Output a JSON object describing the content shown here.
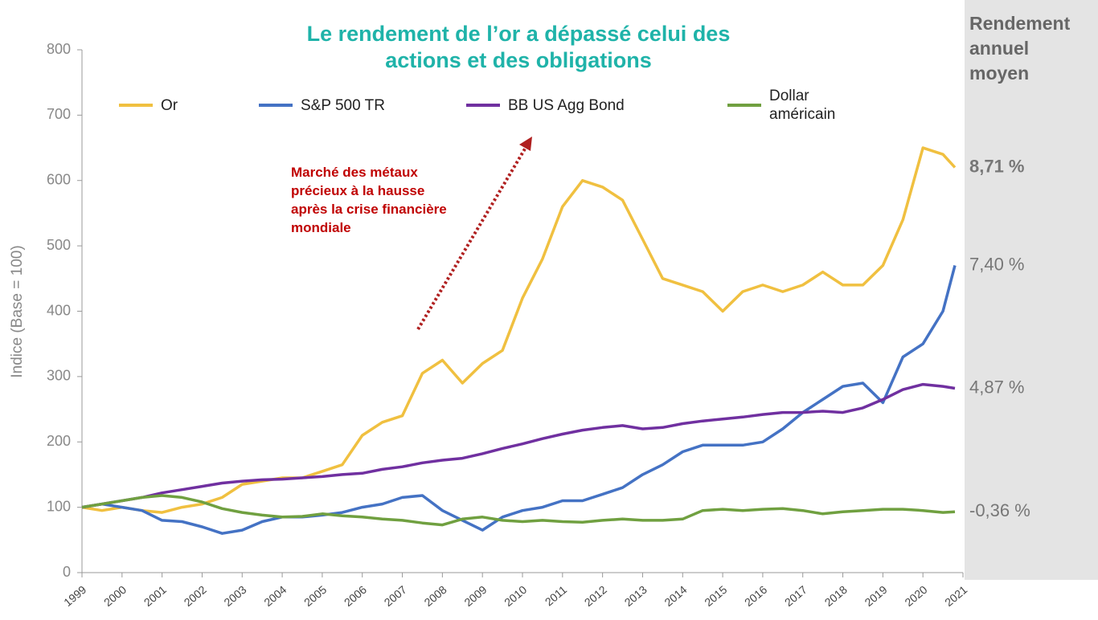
{
  "chart_data": {
    "type": "line",
    "title": "Le rendement de l’or a dépassé celui des actions et des obligations",
    "y_label": "Indice (Base = 100)",
    "panel_title": "Rendement annuel moyen",
    "annotation": "Marché des métaux précieux à la hausse après la crise financière mondiale",
    "x": [
      1999,
      1999.5,
      2000,
      2000.5,
      2001,
      2001.5,
      2002,
      2002.5,
      2003,
      2003.5,
      2004,
      2004.5,
      2005,
      2005.5,
      2006,
      2006.5,
      2007,
      2007.5,
      2008,
      2008.5,
      2009,
      2009.5,
      2010,
      2010.5,
      2011,
      2011.5,
      2012,
      2012.5,
      2013,
      2013.5,
      2014,
      2014.5,
      2015,
      2015.5,
      2016,
      2016.5,
      2017,
      2017.5,
      2018,
      2018.5,
      2019,
      2019.5,
      2020,
      2020.5,
      2020.8
    ],
    "series": [
      {
        "name": "Or",
        "color": "#f0c040",
        "annual_return": "8,71 %",
        "values": [
          100,
          95,
          100,
          95,
          92,
          100,
          105,
          115,
          135,
          140,
          145,
          145,
          155,
          165,
          210,
          230,
          240,
          305,
          325,
          290,
          320,
          340,
          420,
          480,
          560,
          600,
          590,
          570,
          510,
          450,
          440,
          430,
          400,
          430,
          440,
          430,
          440,
          460,
          440,
          440,
          470,
          540,
          650,
          640,
          620
        ]
      },
      {
        "name": "S&P 500 TR",
        "color": "#4472c4",
        "annual_return": "7,40 %",
        "values": [
          100,
          105,
          100,
          95,
          80,
          78,
          70,
          60,
          65,
          78,
          85,
          85,
          88,
          92,
          100,
          105,
          115,
          118,
          95,
          80,
          65,
          85,
          95,
          100,
          110,
          110,
          120,
          130,
          150,
          165,
          185,
          195,
          195,
          195,
          200,
          220,
          245,
          265,
          285,
          290,
          260,
          330,
          350,
          400,
          470
        ]
      },
      {
        "name": "BB US Agg Bond",
        "color": "#7030a0",
        "annual_return": "4,87 %",
        "values": [
          100,
          105,
          110,
          115,
          122,
          127,
          132,
          137,
          140,
          142,
          143,
          145,
          147,
          150,
          152,
          158,
          162,
          168,
          172,
          175,
          182,
          190,
          197,
          205,
          212,
          218,
          222,
          225,
          220,
          222,
          228,
          232,
          235,
          238,
          242,
          245,
          245,
          247,
          245,
          252,
          265,
          280,
          288,
          285,
          282
        ]
      },
      {
        "name": "Dollar américain",
        "color": "#70a040",
        "annual_return": "-0,36 %",
        "values": [
          100,
          105,
          110,
          115,
          118,
          115,
          108,
          98,
          92,
          88,
          85,
          86,
          90,
          87,
          85,
          82,
          80,
          76,
          73,
          82,
          85,
          80,
          78,
          80,
          78,
          77,
          80,
          82,
          80,
          80,
          82,
          95,
          97,
          95,
          97,
          98,
          95,
          90,
          93,
          95,
          97,
          97,
          95,
          92,
          93
        ]
      }
    ],
    "xlim": [
      1999,
      2021
    ],
    "xticks": [
      1999,
      2000,
      2001,
      2002,
      2003,
      2004,
      2005,
      2006,
      2007,
      2008,
      2009,
      2010,
      2011,
      2012,
      2013,
      2014,
      2015,
      2016,
      2017,
      2018,
      2019,
      2020,
      2021
    ],
    "ylim": [
      0,
      800
    ],
    "yticks": [
      0,
      100,
      200,
      300,
      400,
      500,
      600,
      700,
      800
    ],
    "grid": false
  }
}
